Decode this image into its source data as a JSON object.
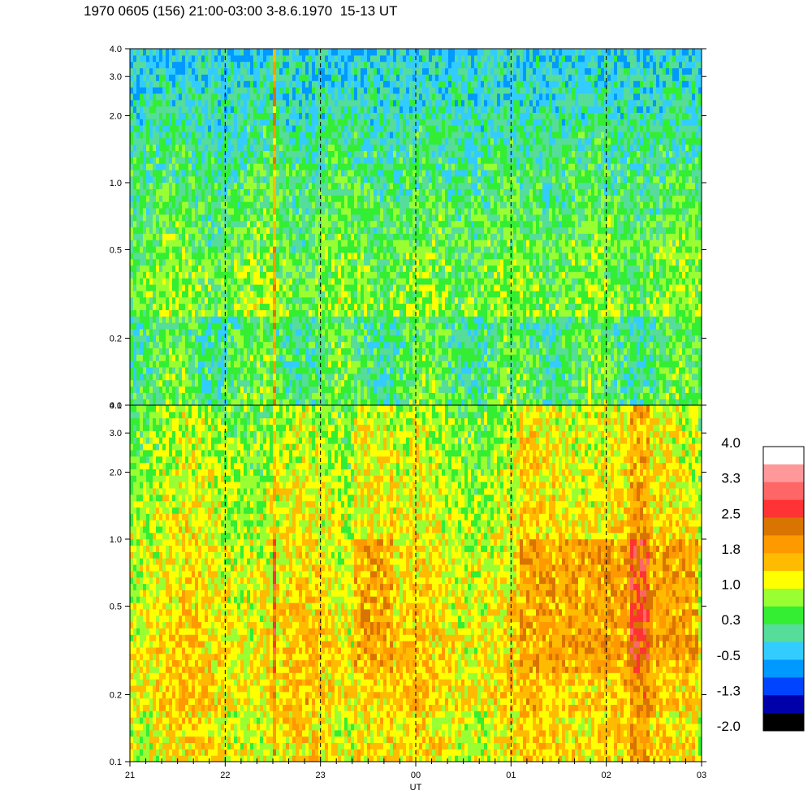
{
  "title": "1970 0605 (156) 21:00-03:00 3-8.6.1970  15-13 UT",
  "chart_data": {
    "type": "heatmap",
    "title": "1970 0605 (156) 21:00-03:00 3-8.6.1970  15-13 UT",
    "xlabel": "UT",
    "x_tick_labels": [
      "21",
      "22",
      "23",
      "00",
      "01",
      "02",
      "03"
    ],
    "x_range_hours": [
      21,
      27
    ],
    "y_scale": "log",
    "ylim": [
      0.1,
      4.0
    ],
    "y_tick_values": [
      0.1,
      0.2,
      0.5,
      1.0,
      2.0,
      3.0,
      4.0
    ],
    "y_tick_labels": [
      "0.1",
      "0.2",
      "0.5",
      "1.0",
      "2.0",
      "3.0",
      "4.0"
    ],
    "vertical_dashed_lines_at": [
      "22",
      "23",
      "00",
      "01",
      "02"
    ],
    "panels": [
      {
        "name": "upper",
        "dominant_levels": [
          0.3,
          0.5,
          1.0
        ],
        "features": [
          {
            "x_start": 22.5,
            "x_end": 22.55,
            "value": 1.8
          }
        ]
      },
      {
        "name": "lower",
        "dominant_levels": [
          1.0,
          1.4,
          1.8
        ],
        "features": [
          {
            "x_start": 22.5,
            "x_end": 22.55,
            "value": 2.5
          },
          {
            "x_start": 23.35,
            "x_end": 23.75,
            "value": 1.8
          },
          {
            "x_start": 25.1,
            "x_end": 26.95,
            "value": 1.8
          },
          {
            "x_start": 26.25,
            "x_end": 26.45,
            "value": 2.5
          }
        ]
      }
    ],
    "colorbar": {
      "labels": [
        "4.0",
        "3.3",
        "2.5",
        "1.8",
        "1.0",
        "0.3",
        "-0.5",
        "-1.3",
        "-2.0"
      ],
      "colors_top_to_bottom": [
        "#ffffff",
        "#ff9999",
        "#ff6666",
        "#ff3333",
        "#d97400",
        "#ff9900",
        "#ffbb00",
        "#ffff00",
        "#99ff33",
        "#33ee33",
        "#55dd99",
        "#33ccff",
        "#0099ff",
        "#0044ff",
        "#0000aa",
        "#000000"
      ]
    }
  }
}
